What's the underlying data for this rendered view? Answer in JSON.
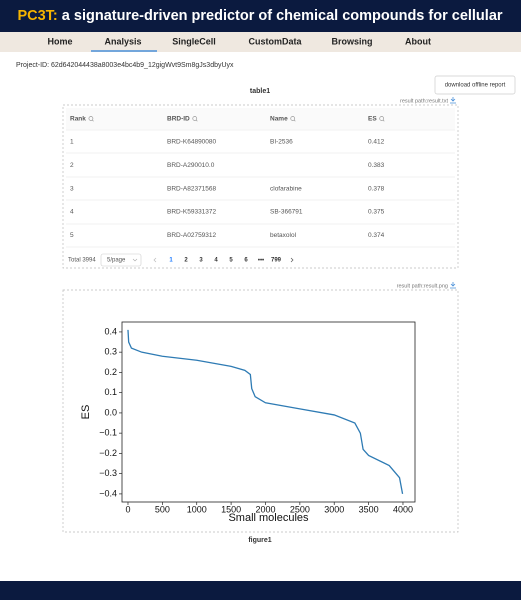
{
  "header": {
    "title_prefix": "PC3T:",
    "title": " a signature-driven predictor of chemical compounds for cellular"
  },
  "nav": {
    "items": [
      "Home",
      "Analysis",
      "SingleCell",
      "CustomData",
      "Browsing",
      "About"
    ]
  },
  "project_id": "Project-ID: 62d642044438a8003e4bc4b9_12gigWvt9Sm8gJs3dbyUyx",
  "button": "download offline report",
  "table": {
    "caption": "table1",
    "path_note": "result path:result.txt",
    "columns": [
      "Rank",
      "BRD-ID",
      "Name",
      "ES"
    ],
    "rows": [
      [
        1,
        "BRD-K64890080",
        "BI-2536",
        0.412
      ],
      [
        2,
        "BRD-A290010.0",
        null,
        0.383
      ],
      [
        3,
        "BRD-A82371568",
        "clofarabine",
        0.378
      ],
      [
        4,
        "BRD-K59331372",
        "SB-366791",
        0.375
      ],
      [
        5,
        "BRD-A02759312",
        "betaxolol",
        0.374
      ]
    ],
    "pagination": {
      "total": "Total 3994",
      "page_size": "5/page",
      "pages": [
        1,
        2,
        3,
        4,
        5,
        6,
        "•••",
        799
      ]
    }
  },
  "figure": {
    "caption": "figure1",
    "path_note": "result path:result.png"
  },
  "chart_data": {
    "type": "line",
    "x_label": "Small molecules",
    "y_label": "ES",
    "color": "#2e7bb4",
    "x": [
      0,
      10,
      50,
      200,
      500,
      1000,
      1500,
      1700,
      1780,
      1800,
      1850,
      2000,
      2500,
      3000,
      3300,
      3380,
      3420,
      3500,
      3800,
      3950,
      3994
    ],
    "values": [
      0.41,
      0.35,
      0.32,
      0.3,
      0.28,
      0.26,
      0.23,
      0.21,
      0.19,
      0.12,
      0.08,
      0.05,
      0.02,
      -0.01,
      -0.05,
      -0.1,
      -0.18,
      -0.21,
      -0.26,
      -0.32,
      -0.4
    ],
    "xlim": [
      -87,
      4175
    ],
    "ylim": [
      -0.44,
      0.449
    ],
    "xticks": [
      0,
      500,
      1000,
      1500,
      2000,
      2500,
      3000,
      3500,
      4000
    ],
    "yticks": [
      0.4,
      0.3,
      0.2,
      0.1,
      {
        "value": 0,
        "label": "0.0"
      },
      {
        "value": -0.1,
        "label": "−0.1"
      },
      {
        "value": -0.2,
        "label": "−0.2"
      },
      {
        "value": -0.3,
        "label": "−0.3"
      },
      {
        "value": -0.4,
        "label": "−0.4"
      }
    ]
  }
}
